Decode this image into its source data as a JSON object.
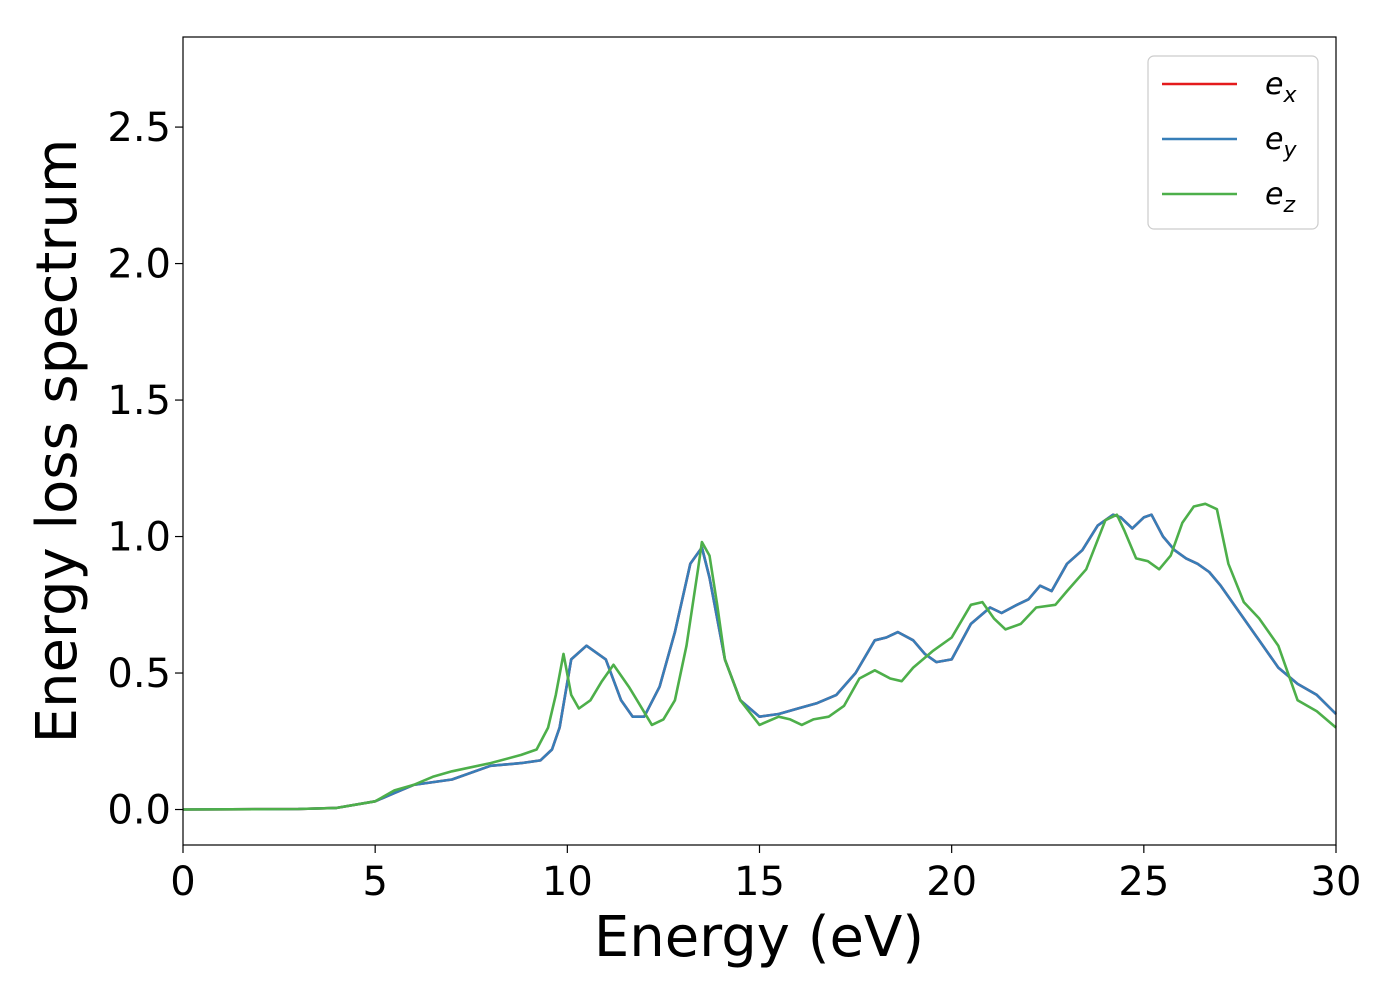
{
  "chart_data": {
    "type": "line",
    "title": "",
    "xlabel": "Energy (eV)",
    "ylabel": "Energy loss spectrum",
    "xlim": [
      0,
      30
    ],
    "ylim": [
      -0.13,
      2.83
    ],
    "xticks": [
      0,
      5,
      10,
      15,
      20,
      25,
      30
    ],
    "xtick_labels": [
      "0",
      "5",
      "10",
      "15",
      "20",
      "25",
      "30"
    ],
    "yticks": [
      0.0,
      0.5,
      1.0,
      1.5,
      2.0,
      2.5
    ],
    "ytick_labels": [
      "0.0",
      "0.5",
      "1.0",
      "1.5",
      "2.0",
      "2.5"
    ],
    "grid": false,
    "legend_position": "top-right",
    "series": [
      {
        "name": "e_x",
        "label_base": "e",
        "label_sub": "x",
        "color": "#e41a1c",
        "x": [
          0,
          3,
          4,
          5,
          5.5,
          6,
          7,
          8,
          8.8,
          9.3,
          9.6,
          9.8,
          10.1,
          10.5,
          11,
          11.4,
          11.7,
          12,
          12.4,
          12.8,
          13.2,
          13.5,
          13.7,
          14.1,
          14.5,
          15,
          15.5,
          16,
          16.5,
          17,
          17.5,
          18,
          18.3,
          18.6,
          19,
          19.3,
          19.6,
          20,
          20.5,
          21,
          21.3,
          21.7,
          22,
          22.3,
          22.6,
          23,
          23.4,
          23.8,
          24.2,
          24.4,
          24.7,
          25,
          25.2,
          25.5,
          25.8,
          26.1,
          26.4,
          26.7,
          27,
          27.5,
          28,
          28.5,
          29,
          29.5,
          30
        ],
        "y": [
          0,
          0.002,
          0.006,
          0.03,
          0.06,
          0.09,
          0.11,
          0.16,
          0.17,
          0.18,
          0.22,
          0.3,
          0.55,
          0.6,
          0.55,
          0.4,
          0.34,
          0.34,
          0.45,
          0.65,
          0.9,
          0.96,
          0.85,
          0.55,
          0.4,
          0.34,
          0.35,
          0.37,
          0.39,
          0.42,
          0.5,
          0.62,
          0.63,
          0.65,
          0.62,
          0.57,
          0.54,
          0.55,
          0.68,
          0.74,
          0.72,
          0.75,
          0.77,
          0.82,
          0.8,
          0.9,
          0.95,
          1.04,
          1.08,
          1.07,
          1.03,
          1.07,
          1.08,
          1.0,
          0.95,
          0.92,
          0.9,
          0.87,
          0.82,
          0.72,
          0.62,
          0.52,
          0.46,
          0.42,
          0.35
        ]
      },
      {
        "name": "e_y",
        "label_base": "e",
        "label_sub": "y",
        "color": "#377eb8",
        "x": [
          0,
          3,
          4,
          5,
          5.5,
          6,
          7,
          8,
          8.8,
          9.3,
          9.6,
          9.8,
          10.1,
          10.5,
          11,
          11.4,
          11.7,
          12,
          12.4,
          12.8,
          13.2,
          13.5,
          13.7,
          14.1,
          14.5,
          15,
          15.5,
          16,
          16.5,
          17,
          17.5,
          18,
          18.3,
          18.6,
          19,
          19.3,
          19.6,
          20,
          20.5,
          21,
          21.3,
          21.7,
          22,
          22.3,
          22.6,
          23,
          23.4,
          23.8,
          24.2,
          24.4,
          24.7,
          25,
          25.2,
          25.5,
          25.8,
          26.1,
          26.4,
          26.7,
          27,
          27.5,
          28,
          28.5,
          29,
          29.5,
          30
        ],
        "y": [
          0,
          0.002,
          0.006,
          0.03,
          0.06,
          0.09,
          0.11,
          0.16,
          0.17,
          0.18,
          0.22,
          0.3,
          0.55,
          0.6,
          0.55,
          0.4,
          0.34,
          0.34,
          0.45,
          0.65,
          0.9,
          0.96,
          0.85,
          0.55,
          0.4,
          0.34,
          0.35,
          0.37,
          0.39,
          0.42,
          0.5,
          0.62,
          0.63,
          0.65,
          0.62,
          0.57,
          0.54,
          0.55,
          0.68,
          0.74,
          0.72,
          0.75,
          0.77,
          0.82,
          0.8,
          0.9,
          0.95,
          1.04,
          1.08,
          1.07,
          1.03,
          1.07,
          1.08,
          1.0,
          0.95,
          0.92,
          0.9,
          0.87,
          0.82,
          0.72,
          0.62,
          0.52,
          0.46,
          0.42,
          0.35
        ]
      },
      {
        "name": "e_z",
        "label_base": "e",
        "label_sub": "z",
        "color": "#4daf4a",
        "x": [
          0,
          3,
          4,
          5,
          5.5,
          6,
          6.5,
          7,
          8,
          8.8,
          9.2,
          9.5,
          9.7,
          9.9,
          10.1,
          10.3,
          10.6,
          10.9,
          11.2,
          11.6,
          11.9,
          12.2,
          12.5,
          12.8,
          13.1,
          13.4,
          13.5,
          13.7,
          13.9,
          14.1,
          14.5,
          15,
          15.5,
          15.8,
          16.1,
          16.4,
          16.8,
          17.2,
          17.6,
          18,
          18.4,
          18.7,
          19,
          19.5,
          20,
          20.5,
          20.8,
          21.1,
          21.4,
          21.8,
          22.2,
          22.7,
          23,
          23.5,
          24,
          24.3,
          24.5,
          24.8,
          25.1,
          25.4,
          25.7,
          26,
          26.3,
          26.6,
          26.9,
          27.2,
          27.6,
          28,
          28.5,
          29,
          29.5,
          30
        ],
        "y": [
          0,
          0.002,
          0.006,
          0.03,
          0.07,
          0.09,
          0.12,
          0.14,
          0.17,
          0.2,
          0.22,
          0.3,
          0.42,
          0.57,
          0.42,
          0.37,
          0.4,
          0.47,
          0.53,
          0.45,
          0.38,
          0.31,
          0.33,
          0.4,
          0.6,
          0.88,
          0.98,
          0.93,
          0.75,
          0.55,
          0.4,
          0.31,
          0.34,
          0.33,
          0.31,
          0.33,
          0.34,
          0.38,
          0.48,
          0.51,
          0.48,
          0.47,
          0.52,
          0.58,
          0.63,
          0.75,
          0.76,
          0.7,
          0.66,
          0.68,
          0.74,
          0.75,
          0.8,
          0.88,
          1.06,
          1.08,
          1.02,
          0.92,
          0.91,
          0.88,
          0.93,
          1.05,
          1.11,
          1.12,
          1.1,
          0.9,
          0.76,
          0.7,
          0.6,
          0.4,
          0.36,
          0.3
        ]
      }
    ]
  }
}
